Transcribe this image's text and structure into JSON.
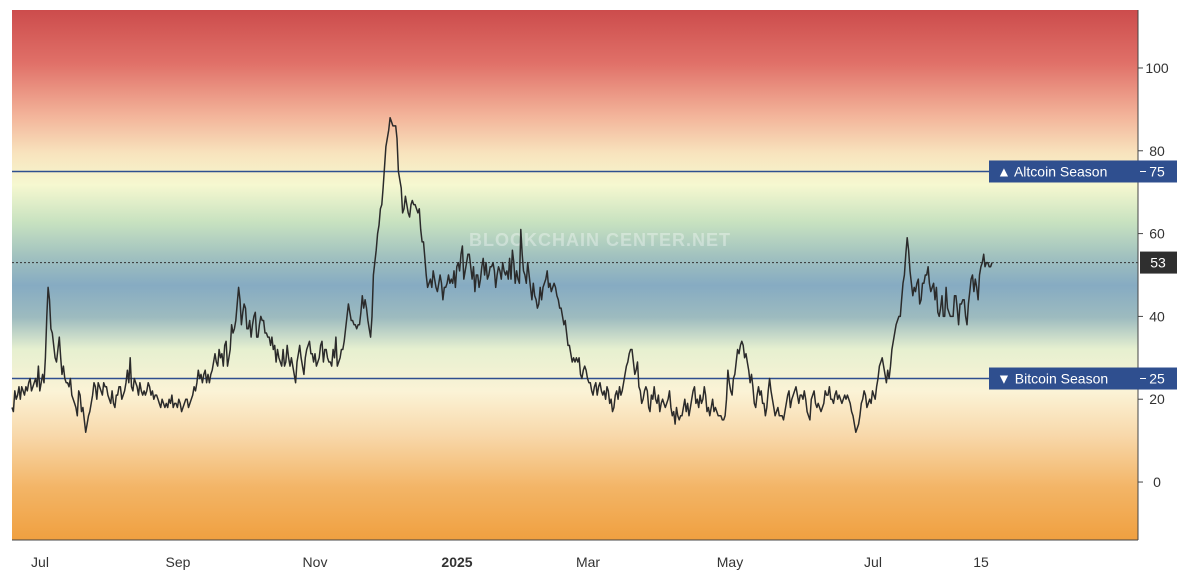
{
  "chart_data": {
    "type": "line",
    "title": "",
    "watermark": "BLOCKCHAIN CENTER.NET",
    "xlabel": "",
    "ylabel": "",
    "x_tick_labels": [
      "Jul",
      "Sep",
      "Nov",
      "2025",
      "Mar",
      "May",
      "Jul",
      "15"
    ],
    "y_ticks": [
      0,
      20,
      40,
      60,
      80,
      100
    ],
    "ylim": [
      -14,
      114
    ],
    "grid": false,
    "current_value": 53,
    "current_value_label": "53",
    "thresholds": [
      {
        "label": "▲ Altcoin Season",
        "value_label": "75",
        "value": 75,
        "color": "#2f4f8f"
      },
      {
        "label": "▼ Bitcoin Season",
        "value_label": "25",
        "value": 25,
        "color": "#2f4f8f"
      }
    ],
    "colors": {
      "line": "#2b2b2b",
      "top_band": "#cc4c4c",
      "mid_band": "#7fa8c0",
      "bottom_band": "#f0a040",
      "label_box": "#2f4f8f",
      "value_box": "#2f2f2f"
    },
    "series": [
      {
        "values": [
          18,
          17,
          22,
          20,
          21,
          23,
          20,
          23,
          22,
          21,
          23,
          22,
          24,
          25,
          22,
          23,
          24,
          25,
          23,
          28,
          22,
          24,
          26,
          24,
          30,
          40,
          47,
          44,
          37,
          36,
          33,
          30,
          29,
          32,
          35,
          30,
          26,
          28,
          25,
          24,
          24,
          23,
          25,
          21,
          20,
          19,
          18,
          16,
          22,
          21,
          17,
          18,
          15,
          12,
          14,
          16,
          17,
          19,
          21,
          24,
          23,
          20,
          24,
          23,
          22,
          21,
          24,
          23,
          23,
          21,
          20,
          19,
          22,
          19,
          18,
          21,
          21,
          23,
          23,
          20,
          21,
          22,
          24,
          27,
          24,
          30,
          23,
          22,
          25,
          24,
          23,
          21,
          24,
          22,
          21,
          22,
          21,
          22,
          24,
          23,
          21,
          22,
          20,
          21,
          21,
          20,
          19,
          18,
          20,
          19,
          18,
          19,
          18,
          20,
          19,
          21,
          18,
          19,
          19,
          18,
          20,
          19,
          17,
          18,
          19,
          20,
          20,
          18,
          19,
          20,
          21,
          23,
          22,
          24,
          27,
          25,
          26,
          24,
          26,
          27,
          24,
          26,
          24,
          26,
          27,
          29,
          31,
          29,
          28,
          32,
          30,
          31,
          28,
          33,
          34,
          28,
          30,
          32,
          38,
          36,
          37,
          39,
          43,
          47,
          44,
          38,
          41,
          43,
          42,
          37,
          37,
          39,
          35,
          38,
          40,
          41,
          35,
          35,
          38,
          40,
          39,
          39,
          36,
          36,
          35,
          35,
          33,
          35,
          32,
          33,
          29,
          32,
          30,
          29,
          28,
          32,
          28,
          29,
          33,
          30,
          28,
          30,
          28,
          26,
          24,
          29,
          31,
          33,
          30,
          28,
          26,
          30,
          32,
          33,
          34,
          31,
          31,
          29,
          31,
          28,
          29,
          30,
          33,
          34,
          29,
          32,
          32,
          30,
          29,
          29,
          28,
          32,
          30,
          35,
          28,
          29,
          30,
          32,
          32,
          34,
          37,
          40,
          43,
          41,
          39,
          39,
          38,
          38,
          37,
          38,
          38,
          41,
          45,
          42,
          44,
          42,
          39,
          37,
          35,
          40,
          50,
          53,
          56,
          60,
          62,
          66,
          67,
          71,
          76,
          81,
          83,
          85,
          88,
          87,
          86,
          86,
          86,
          83,
          75,
          73,
          71,
          65,
          66,
          69,
          67,
          65,
          64,
          67,
          68,
          67,
          67,
          66,
          65,
          66,
          61,
          58,
          58,
          54,
          50,
          47,
          48,
          49,
          47,
          51,
          49,
          47,
          46,
          48,
          50,
          48,
          44,
          47,
          47,
          48,
          50,
          48,
          49,
          48,
          51,
          47,
          52,
          53,
          51,
          55,
          57,
          49,
          51,
          53,
          55,
          55,
          52,
          49,
          52,
          46,
          50,
          50,
          47,
          49,
          52,
          54,
          50,
          53,
          49,
          50,
          52,
          52,
          53,
          51,
          47,
          50,
          52,
          51,
          49,
          53,
          51,
          50,
          51,
          49,
          54,
          49,
          56,
          53,
          48,
          51,
          49,
          48,
          61,
          55,
          51,
          50,
          48,
          53,
          50,
          47,
          44,
          48,
          45,
          44,
          42,
          43,
          47,
          44,
          47,
          48,
          49,
          51,
          47,
          48,
          46,
          47,
          48,
          47,
          45,
          44,
          42,
          42,
          40,
          38,
          39,
          36,
          33,
          33,
          31,
          29,
          30,
          29,
          30,
          29,
          30,
          26,
          25,
          27,
          28,
          27,
          25,
          24,
          24,
          22,
          21,
          23,
          24,
          21,
          23,
          24,
          22,
          21,
          22,
          20,
          23,
          22,
          19,
          20,
          17,
          18,
          21,
          22,
          20,
          23,
          21,
          22,
          24,
          26,
          28,
          29,
          31,
          32,
          32,
          29,
          26,
          27,
          29,
          23,
          22,
          19,
          20,
          22,
          23,
          22,
          18,
          17,
          21,
          20,
          23,
          20,
          19,
          21,
          17,
          19,
          20,
          19,
          18,
          19,
          20,
          22,
          18,
          16,
          17,
          14,
          18,
          16,
          15,
          16,
          16,
          18,
          20,
          17,
          19,
          16,
          18,
          20,
          22,
          23,
          19,
          20,
          18,
          21,
          19,
          20,
          23,
          21,
          17,
          18,
          16,
          18,
          20,
          17,
          18,
          17,
          16,
          16,
          16,
          15,
          15,
          16,
          20,
          27,
          24,
          22,
          21,
          25,
          26,
          29,
          32,
          31,
          33,
          34,
          33,
          30,
          31,
          29,
          27,
          24,
          26,
          23,
          19,
          18,
          21,
          23,
          21,
          22,
          19,
          19,
          16,
          18,
          22,
          25,
          22,
          20,
          18,
          16,
          17,
          18,
          16,
          16,
          16,
          15,
          17,
          19,
          21,
          22,
          18,
          20,
          21,
          22,
          23,
          21,
          19,
          21,
          21,
          20,
          22,
          20,
          17,
          16,
          15,
          20,
          21,
          22,
          19,
          18,
          19,
          18,
          17,
          18,
          19,
          22,
          21,
          21,
          23,
          20,
          20,
          19,
          21,
          22,
          20,
          21,
          20,
          19,
          20,
          21,
          20,
          21,
          20,
          19,
          17,
          16,
          14,
          12,
          13,
          14,
          16,
          19,
          20,
          22,
          21,
          18,
          19,
          20,
          19,
          22,
          21,
          20,
          23,
          25,
          28,
          29,
          30,
          28,
          26,
          24,
          27,
          25,
          28,
          32,
          34,
          36,
          38,
          39,
          40,
          40,
          44,
          48,
          50,
          55,
          59,
          56,
          51,
          48,
          45,
          47,
          46,
          48,
          49,
          43,
          44,
          48,
          48,
          50,
          50,
          52,
          48,
          46,
          47,
          48,
          44,
          47,
          41,
          40,
          42,
          45,
          40,
          40,
          47,
          42,
          41,
          40,
          40,
          40,
          45,
          45,
          42,
          38,
          43,
          43,
          44,
          44,
          40,
          38,
          43,
          46,
          49,
          50,
          46,
          49,
          47,
          44,
          50,
          52,
          53,
          55,
          52,
          53,
          53,
          52,
          52,
          53
        ]
      }
    ]
  }
}
